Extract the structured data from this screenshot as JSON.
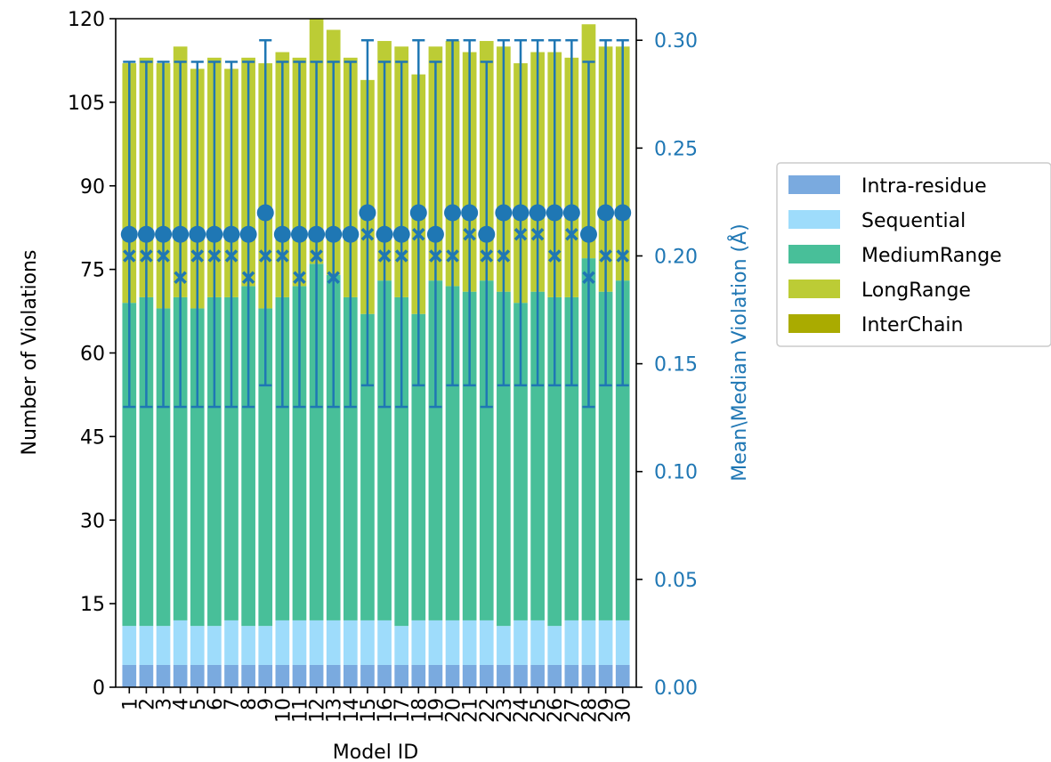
{
  "chart_data": {
    "type": "bar",
    "stacked": true,
    "categories": [
      "1",
      "2",
      "3",
      "4",
      "5",
      "6",
      "7",
      "8",
      "9",
      "10",
      "11",
      "12",
      "13",
      "14",
      "15",
      "16",
      "17",
      "18",
      "19",
      "20",
      "21",
      "22",
      "23",
      "24",
      "25",
      "26",
      "27",
      "28",
      "29",
      "30"
    ],
    "xlabel": "Model ID",
    "ylabel": "Number of Violations",
    "y2label": "Mean\\Median Violation (Å)",
    "ylim": [
      0,
      120
    ],
    "yticks": [
      "0",
      "15",
      "30",
      "45",
      "60",
      "75",
      "90",
      "105",
      "120"
    ],
    "y2lim": [
      0,
      0.31
    ],
    "y2ticks": [
      "0.00",
      "0.05",
      "0.10",
      "0.15",
      "0.20",
      "0.25",
      "0.30"
    ],
    "legend_position": "right",
    "series": [
      {
        "name": "Intra-residue",
        "color": "#7aaadf",
        "values": [
          4,
          4,
          4,
          4,
          4,
          4,
          4,
          4,
          4,
          4,
          4,
          4,
          4,
          4,
          4,
          4,
          4,
          4,
          4,
          4,
          4,
          4,
          4,
          4,
          4,
          4,
          4,
          4,
          4,
          4
        ]
      },
      {
        "name": "Sequential",
        "color": "#9edcfb",
        "values": [
          7,
          7,
          7,
          8,
          7,
          7,
          8,
          7,
          7,
          8,
          8,
          8,
          8,
          8,
          8,
          8,
          7,
          8,
          8,
          8,
          8,
          8,
          7,
          8,
          8,
          7,
          8,
          8,
          8,
          8
        ]
      },
      {
        "name": "MediumRange",
        "color": "#48bf99",
        "values": [
          58,
          59,
          57,
          58,
          57,
          59,
          58,
          61,
          57,
          58,
          60,
          64,
          62,
          58,
          55,
          61,
          59,
          55,
          61,
          60,
          59,
          61,
          60,
          57,
          59,
          59,
          58,
          65,
          59,
          61
        ]
      },
      {
        "name": "LongRange",
        "color": "#bccc35",
        "values": [
          43,
          43,
          44,
          45,
          43,
          43,
          41,
          41,
          44,
          44,
          41,
          44,
          44,
          43,
          42,
          43,
          45,
          43,
          42,
          44,
          43,
          43,
          44,
          43,
          43,
          44,
          43,
          42,
          44,
          42
        ]
      },
      {
        "name": "InterChain",
        "color": "#aaab00",
        "values": [
          0,
          0,
          0,
          0,
          0,
          0,
          0,
          0,
          0,
          0,
          0,
          0,
          0,
          0,
          0,
          0,
          0,
          0,
          0,
          0,
          0,
          0,
          0,
          0,
          0,
          0,
          0,
          0,
          0,
          0
        ]
      }
    ],
    "mean_violation": {
      "color": "#1f77b4",
      "marker": "circle",
      "values": [
        0.21,
        0.21,
        0.21,
        0.21,
        0.21,
        0.21,
        0.21,
        0.21,
        0.22,
        0.21,
        0.21,
        0.21,
        0.21,
        0.21,
        0.22,
        0.21,
        0.21,
        0.22,
        0.21,
        0.22,
        0.22,
        0.21,
        0.22,
        0.22,
        0.22,
        0.22,
        0.22,
        0.21,
        0.22,
        0.22
      ],
      "error_low": [
        0.13,
        0.13,
        0.13,
        0.13,
        0.13,
        0.13,
        0.13,
        0.13,
        0.14,
        0.13,
        0.13,
        0.13,
        0.13,
        0.13,
        0.14,
        0.13,
        0.13,
        0.14,
        0.13,
        0.14,
        0.14,
        0.13,
        0.14,
        0.14,
        0.14,
        0.14,
        0.14,
        0.13,
        0.14,
        0.14
      ],
      "error_high": [
        0.29,
        0.29,
        0.29,
        0.29,
        0.29,
        0.29,
        0.29,
        0.29,
        0.3,
        0.29,
        0.29,
        0.29,
        0.29,
        0.29,
        0.3,
        0.29,
        0.29,
        0.3,
        0.29,
        0.3,
        0.3,
        0.29,
        0.3,
        0.3,
        0.3,
        0.3,
        0.3,
        0.29,
        0.3,
        0.3
      ]
    },
    "median_violation": {
      "color": "#1f77b4",
      "marker": "x",
      "values": [
        0.2,
        0.2,
        0.2,
        0.19,
        0.2,
        0.2,
        0.2,
        0.19,
        0.2,
        0.2,
        0.19,
        0.2,
        0.19,
        0.21,
        0.21,
        0.2,
        0.2,
        0.21,
        0.2,
        0.2,
        0.21,
        0.2,
        0.2,
        0.21,
        0.21,
        0.2,
        0.21,
        0.19,
        0.2,
        0.2
      ]
    }
  }
}
